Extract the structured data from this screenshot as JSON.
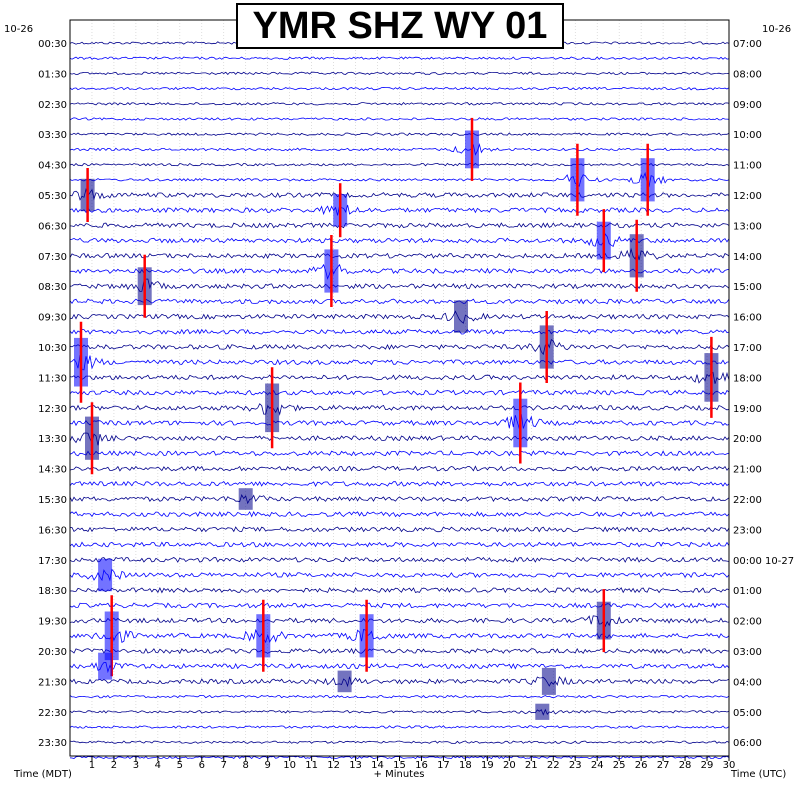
{
  "chart_data": {
    "type": "line",
    "title": "YMR SHZ WY 01",
    "date_left": "10-26",
    "date_right": "10-26",
    "xlabel": "+ Minutes",
    "xlabel_left": "Time (MDT)",
    "xlabel_right": "Time (UTC)",
    "x_range": [
      0,
      30
    ],
    "x_ticks": [
      1,
      2,
      3,
      4,
      5,
      6,
      7,
      8,
      9,
      10,
      11,
      12,
      13,
      14,
      15,
      16,
      17,
      18,
      19,
      20,
      21,
      22,
      23,
      24,
      25,
      26,
      27,
      28,
      29,
      30
    ],
    "trace_count": 48,
    "trace_start_hour": 0,
    "trace_minutes": 30,
    "left_labels": [
      "00:30",
      "01:30",
      "02:30",
      "03:30",
      "04:30",
      "05:30",
      "06:30",
      "07:30",
      "08:30",
      "09:30",
      "10:30",
      "11:30",
      "12:30",
      "13:30",
      "14:30",
      "15:30",
      "16:30",
      "17:30",
      "18:30",
      "19:30",
      "20:30",
      "21:30",
      "22:30",
      "23:30"
    ],
    "right_labels": [
      "07:00",
      "08:00",
      "09:00",
      "10:00",
      "11:00",
      "12:00",
      "13:00",
      "14:00",
      "15:00",
      "16:00",
      "17:00",
      "18:00",
      "19:00",
      "20:00",
      "21:00",
      "22:00",
      "23:00",
      "00:00 10-27",
      "01:00",
      "02:00",
      "03:00",
      "04:00",
      "05:00",
      "06:00"
    ],
    "trace_colors": [
      "#00008b",
      "#0000ff"
    ],
    "clip_color": "#ff0000",
    "grid": true,
    "activity": [
      {
        "trace": 7,
        "minute": 18.3,
        "amp": 3.5,
        "clipped": true
      },
      {
        "trace": 9,
        "minute": 23.1,
        "amp": 4.0,
        "clipped": true
      },
      {
        "trace": 9,
        "minute": 26.3,
        "amp": 4.0,
        "clipped": true
      },
      {
        "trace": 10,
        "minute": 0.8,
        "amp": 3.0,
        "clipped": true
      },
      {
        "trace": 11,
        "minute": 12.3,
        "amp": 3.0,
        "clipped": true
      },
      {
        "trace": 13,
        "minute": 24.3,
        "amp": 3.5,
        "clipped": true
      },
      {
        "trace": 14,
        "minute": 25.8,
        "amp": 4.0,
        "clipped": true
      },
      {
        "trace": 15,
        "minute": 11.9,
        "amp": 4.0,
        "clipped": true
      },
      {
        "trace": 16,
        "minute": 3.4,
        "amp": 3.5,
        "clipped": true
      },
      {
        "trace": 18,
        "minute": 17.8,
        "amp": 3.0,
        "clipped": false
      },
      {
        "trace": 20,
        "minute": 21.7,
        "amp": 4.0,
        "clipped": true
      },
      {
        "trace": 21,
        "minute": 0.5,
        "amp": 4.5,
        "clipped": true
      },
      {
        "trace": 22,
        "minute": 29.2,
        "amp": 4.5,
        "clipped": true
      },
      {
        "trace": 24,
        "minute": 9.2,
        "amp": 4.5,
        "clipped": true
      },
      {
        "trace": 25,
        "minute": 20.5,
        "amp": 4.5,
        "clipped": true
      },
      {
        "trace": 26,
        "minute": 1.0,
        "amp": 4.0,
        "clipped": true
      },
      {
        "trace": 30,
        "minute": 8.0,
        "amp": 2.0,
        "clipped": false
      },
      {
        "trace": 35,
        "minute": 1.6,
        "amp": 3.0,
        "clipped": false
      },
      {
        "trace": 38,
        "minute": 24.3,
        "amp": 3.5,
        "clipped": true
      },
      {
        "trace": 39,
        "minute": 1.9,
        "amp": 4.5,
        "clipped": true
      },
      {
        "trace": 39,
        "minute": 8.8,
        "amp": 4.0,
        "clipped": true
      },
      {
        "trace": 39,
        "minute": 13.5,
        "amp": 4.0,
        "clipped": true
      },
      {
        "trace": 41,
        "minute": 1.6,
        "amp": 2.5,
        "clipped": false
      },
      {
        "trace": 42,
        "minute": 12.5,
        "amp": 2.0,
        "clipped": false
      },
      {
        "trace": 42,
        "minute": 21.8,
        "amp": 2.5,
        "clipped": false
      },
      {
        "trace": 44,
        "minute": 21.5,
        "amp": 1.5,
        "clipped": false
      }
    ]
  }
}
